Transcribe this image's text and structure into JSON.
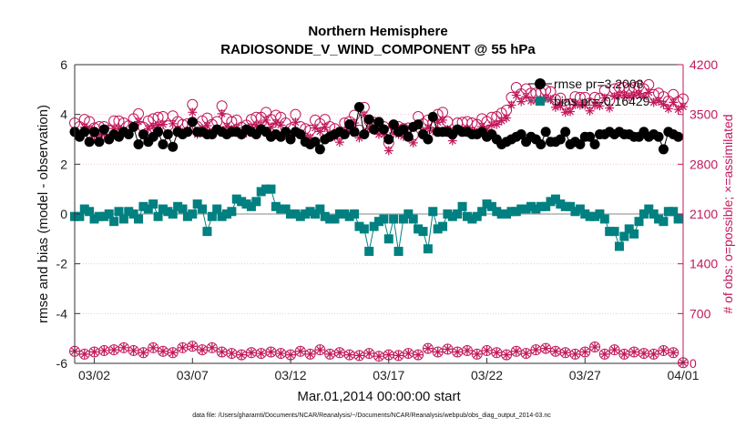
{
  "chart_data": {
    "type": "line",
    "title": "Northern Hemisphere",
    "subtitle": "RADIOSONDE_V_WIND_COMPONENT @ 55 hPa",
    "xlabel": "Mar.01,2014 00:00:00 start",
    "ylabel": "rmse and bias (model - observation)",
    "ylabel_right": "# of obs: o=possible; ×=assimilated",
    "xlim": [
      0,
      124
    ],
    "ylim": [
      -6,
      6
    ],
    "ylim_right": [
      0,
      4200
    ],
    "x_ticks": [
      4,
      24,
      44,
      64,
      84,
      104,
      124
    ],
    "x_tick_labels": [
      "03/02",
      "03/07",
      "03/12",
      "03/17",
      "03/22",
      "03/27",
      "04/01"
    ],
    "y_ticks": [
      -6,
      -4,
      -2,
      0,
      2,
      4,
      6
    ],
    "y_tick_labels": [
      "-6",
      "-4",
      "-2",
      "0",
      "2",
      "4",
      "6"
    ],
    "y_ticks_right": [
      0,
      700,
      1400,
      2100,
      2800,
      3500,
      4200
    ],
    "y_tick_labels_right": [
      "0",
      "700",
      "1400",
      "2100",
      "2800",
      "3500",
      "4200"
    ],
    "legend": [
      {
        "label": "rmse pr=3.2008",
        "color": "#000000"
      },
      {
        "label": "bias pr=-0.16429",
        "color": "#008080"
      }
    ],
    "footer": "data file: /Users/gharamti/Documents/NCAR/Reanalysis/~/Documents/NCAR/Reanalysis/webpub/obs_diag_output_2014-03.nc",
    "colors": {
      "rmse": "#000000",
      "bias": "#008080",
      "obs": "#c2185b",
      "zero": "#b0b0b0"
    },
    "series": [
      {
        "name": "rmse",
        "x": [
          0,
          1,
          2,
          3,
          4,
          5,
          6,
          7,
          8,
          9,
          10,
          11,
          12,
          13,
          14,
          15,
          16,
          17,
          18,
          19,
          20,
          21,
          22,
          23,
          24,
          25,
          26,
          27,
          28,
          29,
          30,
          31,
          32,
          33,
          34,
          35,
          36,
          37,
          38,
          39,
          40,
          41,
          42,
          43,
          44,
          45,
          46,
          47,
          48,
          49,
          50,
          51,
          52,
          53,
          54,
          55,
          56,
          57,
          58,
          59,
          60,
          61,
          62,
          63,
          64,
          65,
          66,
          67,
          68,
          69,
          70,
          71,
          72,
          73,
          74,
          75,
          76,
          77,
          78,
          79,
          80,
          81,
          82,
          83,
          84,
          85,
          86,
          87,
          88,
          89,
          90,
          91,
          92,
          93,
          94,
          95,
          96,
          97,
          98,
          99,
          100,
          101,
          102,
          103,
          104,
          105,
          106,
          107,
          108,
          109,
          110,
          111,
          112,
          113,
          114,
          115,
          116,
          117,
          118,
          119,
          120,
          121,
          122,
          123
        ],
        "values": [
          3.3,
          3.1,
          3.3,
          2.9,
          3.3,
          2.9,
          3.4,
          3.0,
          3.2,
          3.1,
          3.3,
          3.2,
          3.5,
          2.8,
          3.2,
          2.9,
          3.1,
          3.3,
          2.8,
          3.2,
          2.7,
          3.3,
          3.2,
          3.3,
          3.7,
          3.3,
          3.3,
          3.2,
          3.2,
          3.4,
          3.3,
          3.2,
          3.3,
          3.3,
          3.2,
          3.4,
          3.3,
          3.2,
          3.4,
          3.3,
          3.1,
          3.2,
          3.1,
          3.3,
          3.0,
          3.3,
          3.2,
          2.9,
          2.8,
          2.9,
          2.6,
          3.0,
          3.1,
          3.2,
          3.3,
          3.2,
          3.6,
          3.3,
          4.3,
          3.2,
          3.8,
          3.4,
          3.7,
          3.4,
          3.0,
          3.6,
          3.3,
          3.4,
          3.1,
          3.5,
          3.6,
          3.2,
          3.0,
          3.9,
          3.3,
          3.3,
          3.3,
          3.2,
          3.4,
          3.3,
          3.3,
          3.2,
          3.2,
          3.3,
          3.1,
          3.2,
          3.0,
          2.8,
          2.9,
          3.0,
          3.1,
          3.2,
          2.9,
          3.1,
          3.0,
          2.8,
          3.3,
          2.9,
          2.9,
          3.0,
          3.3,
          2.8,
          2.9,
          2.8,
          3.1,
          3.1,
          2.8,
          3.2,
          3.2,
          3.3,
          3.2,
          3.3,
          3.2,
          3.2,
          3.1,
          3.1,
          3.3,
          3.1,
          3.2,
          3.1,
          2.6,
          3.3,
          3.2,
          3.1
        ]
      },
      {
        "name": "bias",
        "x": [
          0,
          1,
          2,
          3,
          4,
          5,
          6,
          7,
          8,
          9,
          10,
          11,
          12,
          13,
          14,
          15,
          16,
          17,
          18,
          19,
          20,
          21,
          22,
          23,
          24,
          25,
          26,
          27,
          28,
          29,
          30,
          31,
          32,
          33,
          34,
          35,
          36,
          37,
          38,
          39,
          40,
          41,
          42,
          43,
          44,
          45,
          46,
          47,
          48,
          49,
          50,
          51,
          52,
          53,
          54,
          55,
          56,
          57,
          58,
          59,
          60,
          61,
          62,
          63,
          64,
          65,
          66,
          67,
          68,
          69,
          70,
          71,
          72,
          73,
          74,
          75,
          76,
          77,
          78,
          79,
          80,
          81,
          82,
          83,
          84,
          85,
          86,
          87,
          88,
          89,
          90,
          91,
          92,
          93,
          94,
          95,
          96,
          97,
          98,
          99,
          100,
          101,
          102,
          103,
          104,
          105,
          106,
          107,
          108,
          109,
          110,
          111,
          112,
          113,
          114,
          115,
          116,
          117,
          118,
          119,
          120,
          121,
          122,
          123
        ],
        "values": [
          -0.1,
          -0.1,
          0.2,
          0.1,
          -0.2,
          -0.1,
          -0.1,
          0.0,
          -0.3,
          0.1,
          -0.2,
          0.1,
          0.0,
          -0.2,
          0.3,
          0.2,
          0.4,
          -0.1,
          0.2,
          0.1,
          0.0,
          0.3,
          0.2,
          -0.1,
          0.0,
          0.4,
          0.2,
          -0.7,
          -0.1,
          0.2,
          -0.1,
          0.0,
          0.1,
          0.6,
          0.5,
          0.4,
          0.3,
          0.5,
          0.9,
          1.0,
          1.0,
          0.3,
          0.2,
          0.2,
          0.0,
          0.0,
          -0.1,
          0.0,
          0.1,
          0.0,
          0.2,
          -0.1,
          -0.2,
          -0.2,
          0.0,
          0.0,
          -0.1,
          0.0,
          -0.5,
          -0.6,
          -1.5,
          -0.5,
          -0.3,
          -0.2,
          -1.0,
          -0.2,
          -1.5,
          -0.2,
          0.0,
          -0.2,
          -0.6,
          -0.7,
          -1.4,
          0.1,
          -0.6,
          -0.5,
          0.0,
          -0.1,
          0.0,
          0.3,
          -0.1,
          -0.2,
          -0.1,
          0.1,
          0.4,
          0.3,
          0.1,
          0.0,
          0.0,
          0.1,
          0.1,
          0.2,
          0.2,
          0.3,
          0.2,
          0.3,
          0.3,
          0.5,
          0.6,
          0.4,
          0.3,
          0.3,
          0.1,
          0.2,
          0.0,
          -0.1,
          -0.1,
          0.0,
          -0.2,
          -0.7,
          -0.7,
          -1.3,
          -0.9,
          -0.6,
          -0.8,
          -0.3,
          0.0,
          0.2,
          0.0,
          -0.2,
          -0.3,
          0.1,
          0.1,
          -0.2
        ]
      },
      {
        "name": "obs_possible",
        "x": [
          0,
          1,
          2,
          3,
          4,
          5,
          6,
          7,
          8,
          9,
          10,
          11,
          12,
          13,
          14,
          15,
          16,
          17,
          18,
          19,
          20,
          21,
          22,
          23,
          24,
          25,
          26,
          27,
          28,
          29,
          30,
          31,
          32,
          33,
          34,
          35,
          36,
          37,
          38,
          39,
          40,
          41,
          42,
          43,
          44,
          45,
          46,
          47,
          48,
          49,
          50,
          51,
          52,
          53,
          54,
          55,
          56,
          57,
          58,
          59,
          60,
          61,
          62,
          63,
          64,
          65,
          66,
          67,
          68,
          69,
          70,
          71,
          72,
          73,
          74,
          75,
          76,
          77,
          78,
          79,
          80,
          81,
          82,
          83,
          84,
          85,
          86,
          87,
          88,
          89,
          90,
          91,
          92,
          93,
          94,
          95,
          96,
          97,
          98,
          99,
          100,
          101,
          102,
          103,
          104,
          105,
          106,
          107,
          108,
          109,
          110,
          111,
          112,
          113,
          114,
          115,
          116,
          117,
          118,
          119,
          120,
          121,
          122,
          123,
          124
        ],
        "values": [
          3380,
          3330,
          3430,
          3400,
          3310,
          3330,
          3330,
          3280,
          3410,
          3410,
          3380,
          3340,
          3440,
          3510,
          3320,
          3410,
          3440,
          3460,
          3470,
          3340,
          3480,
          3400,
          3360,
          3370,
          3640,
          3330,
          3410,
          3450,
          3360,
          3400,
          3620,
          3440,
          3400,
          3420,
          3320,
          3350,
          3430,
          3460,
          3460,
          3530,
          3430,
          3490,
          3460,
          3380,
          3300,
          3500,
          3330,
          3300,
          3280,
          3420,
          3370,
          3430,
          3330,
          3300,
          3220,
          3380,
          3400,
          3490,
          3280,
          3600,
          3410,
          3390,
          3330,
          3330,
          3100,
          3350,
          3330,
          3300,
          3310,
          3210,
          3470,
          3370,
          3420,
          3380,
          3500,
          3530,
          3400,
          3240,
          3380,
          3390,
          3400,
          3380,
          3360,
          3440,
          3400,
          3460,
          3470,
          3520,
          3560,
          3740,
          3880,
          3790,
          3860,
          3800,
          3800,
          3810,
          3840,
          3820,
          3710,
          3730,
          3640,
          3650,
          3750,
          3740,
          3740,
          3660,
          3740,
          3730,
          3840,
          3700,
          3860,
          3880,
          3880,
          3860,
          3880,
          3900,
          3860,
          3920,
          3780,
          3800,
          3750,
          3690,
          3780,
          3680,
          3720
        ]
      },
      {
        "name": "obs_assimilated",
        "x": [
          0,
          1,
          2,
          3,
          4,
          5,
          6,
          7,
          8,
          9,
          10,
          11,
          12,
          13,
          14,
          15,
          16,
          17,
          18,
          19,
          20,
          21,
          22,
          23,
          24,
          25,
          26,
          27,
          28,
          29,
          30,
          31,
          32,
          33,
          34,
          35,
          36,
          37,
          38,
          39,
          40,
          41,
          42,
          43,
          44,
          45,
          46,
          47,
          48,
          49,
          50,
          51,
          52,
          53,
          54,
          55,
          56,
          57,
          58,
          59,
          60,
          61,
          62,
          63,
          64,
          65,
          66,
          67,
          68,
          69,
          70,
          71,
          72,
          73,
          74,
          75,
          76,
          77,
          78,
          79,
          80,
          81,
          82,
          83,
          84,
          85,
          86,
          87,
          88,
          89,
          90,
          91,
          92,
          93,
          94,
          95,
          96,
          97,
          98,
          99,
          100,
          101,
          102,
          103,
          104,
          105,
          106,
          107,
          108,
          109,
          110,
          111,
          112,
          113,
          114,
          115,
          116,
          117,
          118,
          119,
          120,
          121,
          122,
          123,
          124
        ],
        "values": [
          3270,
          3220,
          3320,
          3290,
          3200,
          3220,
          3220,
          3170,
          3300,
          3300,
          3270,
          3230,
          3330,
          3400,
          3210,
          3300,
          3330,
          3350,
          3360,
          3230,
          3370,
          3290,
          3250,
          3260,
          3530,
          3220,
          3300,
          3340,
          3250,
          3290,
          3510,
          3330,
          3290,
          3310,
          3210,
          3240,
          3320,
          3350,
          3350,
          3420,
          3320,
          3380,
          3350,
          3270,
          3190,
          3390,
          3220,
          3190,
          3170,
          3310,
          3260,
          3320,
          3220,
          3190,
          3110,
          3270,
          3290,
          3380,
          3170,
          3490,
          3300,
          3280,
          3220,
          3220,
          2990,
          3240,
          3220,
          3190,
          3200,
          3100,
          3360,
          3260,
          3310,
          3270,
          3390,
          3420,
          3290,
          3130,
          3270,
          3280,
          3290,
          3270,
          3250,
          3330,
          3290,
          3350,
          3360,
          3410,
          3450,
          3630,
          3770,
          3680,
          3750,
          3690,
          3690,
          3700,
          3730,
          3710,
          3600,
          3620,
          3530,
          3540,
          3640,
          3630,
          3630,
          3550,
          3630,
          3620,
          3730,
          3590,
          3750,
          3770,
          3770,
          3750,
          3770,
          3790,
          3750,
          3810,
          3670,
          3690,
          3640,
          3580,
          3670,
          3570,
          3610
        ]
      },
      {
        "name": "obs_bottom_possible",
        "x": [
          0,
          2,
          4,
          6,
          8,
          10,
          12,
          14,
          16,
          18,
          20,
          22,
          24,
          26,
          28,
          30,
          32,
          34,
          36,
          38,
          40,
          42,
          44,
          46,
          48,
          50,
          52,
          54,
          56,
          58,
          60,
          62,
          64,
          66,
          68,
          70,
          72,
          74,
          76,
          78,
          80,
          82,
          84,
          86,
          88,
          90,
          92,
          94,
          96,
          98,
          100,
          102,
          104,
          106,
          108,
          110,
          112,
          114,
          116,
          118,
          120,
          122,
          124
        ],
        "values": [
          170,
          130,
          160,
          180,
          190,
          220,
          180,
          150,
          220,
          170,
          150,
          220,
          240,
          190,
          220,
          160,
          140,
          120,
          150,
          140,
          160,
          140,
          120,
          170,
          130,
          190,
          130,
          150,
          120,
          110,
          140,
          100,
          120,
          110,
          140,
          120,
          210,
          160,
          200,
          160,
          180,
          130,
          180,
          150,
          120,
          170,
          140,
          190,
          210,
          170,
          150,
          130,
          160,
          230,
          130,
          190,
          130,
          160,
          140,
          130,
          180,
          150,
          10
        ]
      }
    ]
  }
}
